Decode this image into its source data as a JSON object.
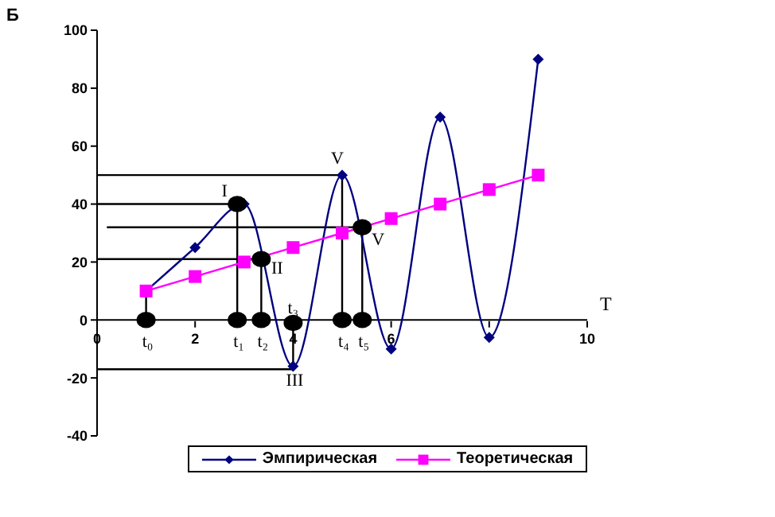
{
  "chart_data": {
    "type": "line",
    "xlabel": "T",
    "ylabel": "Б",
    "xlim": [
      0,
      10
    ],
    "xticks": [
      0,
      2,
      4,
      6,
      {
        "value": 8,
        "label": null
      },
      10
    ],
    "ylim": [
      -40,
      100
    ],
    "yticks": [
      -40,
      -20,
      0,
      20,
      40,
      60,
      80,
      100
    ],
    "grid": false,
    "legend": "bottom",
    "series": [
      {
        "type": "line",
        "color": "#000000",
        "marker": "none",
        "x": [
          0,
          5,
          5
        ],
        "values": [
          50,
          50,
          0
        ]
      },
      {
        "type": "line",
        "color": "#000000",
        "marker": "none",
        "x": [
          0,
          2.86,
          2.86
        ],
        "values": [
          40,
          40,
          0
        ]
      },
      {
        "type": "line",
        "color": "#000000",
        "marker": "none",
        "x": [
          0.2,
          5.41,
          5.41
        ],
        "values": [
          32,
          32,
          0
        ]
      },
      {
        "type": "line",
        "color": "#000000",
        "marker": "none",
        "x": [
          0,
          3.35,
          3.35
        ],
        "values": [
          21,
          21,
          0
        ]
      },
      {
        "type": "line",
        "color": "#000000",
        "marker": "none",
        "x": [
          0,
          4,
          4
        ],
        "values": [
          -17,
          -17,
          0
        ]
      },
      {
        "type": "line",
        "color": "#000000",
        "marker": "none",
        "x": [
          1,
          1
        ],
        "values": [
          0,
          10
        ]
      },
      {
        "name": "Эмпирическая",
        "type": "line",
        "color": "#000080",
        "marker": "diamond",
        "x": [
          1,
          2,
          3,
          4,
          5,
          6,
          7,
          8,
          9
        ],
        "values": [
          10,
          25,
          40,
          -16,
          50,
          -10,
          70,
          -6,
          90
        ]
      },
      {
        "name": "Теоретическая",
        "type": "line",
        "color": "#ff00ff",
        "marker": "square",
        "x": [
          1,
          2,
          3,
          4,
          5,
          6,
          7,
          8,
          9
        ],
        "values": [
          10,
          15,
          20,
          25,
          30,
          35,
          40,
          45,
          50
        ]
      },
      {
        "type": "scatter",
        "color": "#000000",
        "marker": "circle",
        "x": [
          1,
          2.86,
          3.35,
          4,
          5,
          5.41,
          2.86,
          3.35,
          5.41
        ],
        "values": [
          0,
          0,
          0,
          -1,
          0,
          0,
          40,
          21,
          32
        ]
      }
    ],
    "annotations": [
      {
        "text": "I",
        "x": 2.86,
        "y": 40
      },
      {
        "text": "II",
        "x": 3.35,
        "y": 21
      },
      {
        "text": "III",
        "x": 4,
        "y": -16
      },
      {
        "text": "V",
        "x": 5,
        "y": 50
      },
      {
        "text": "V",
        "x": 5.41,
        "y": 32
      },
      {
        "text": "t₀",
        "x": 1,
        "y": 0
      },
      {
        "text": "t₁",
        "x": 2.86,
        "y": 0
      },
      {
        "text": "t₂",
        "x": 3.35,
        "y": 0
      },
      {
        "text": "t₃",
        "x": 4,
        "y": -1
      },
      {
        "text": "t₄",
        "x": 5,
        "y": 0
      },
      {
        "text": "t₅",
        "x": 5.41,
        "y": 0
      }
    ]
  }
}
